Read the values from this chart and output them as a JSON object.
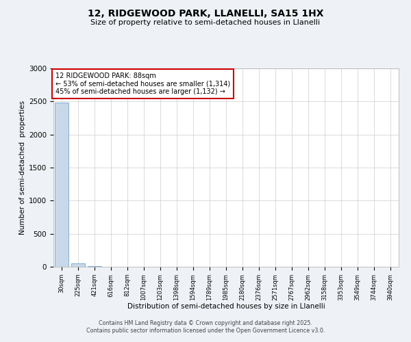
{
  "title1": "12, RIDGEWOOD PARK, LLANELLI, SA15 1HX",
  "title2": "Size of property relative to semi-detached houses in Llanelli",
  "xlabel": "Distribution of semi-detached houses by size in Llanelli",
  "ylabel": "Number of semi-detached  properties",
  "bar_labels": [
    "30sqm",
    "225sqm",
    "421sqm",
    "616sqm",
    "812sqm",
    "1007sqm",
    "1203sqm",
    "1398sqm",
    "1594sqm",
    "1789sqm",
    "1985sqm",
    "2180sqm",
    "2376sqm",
    "2571sqm",
    "2767sqm",
    "2962sqm",
    "3158sqm",
    "3353sqm",
    "3549sqm",
    "3744sqm",
    "3940sqm"
  ],
  "bar_heights": [
    2480,
    50,
    10,
    5,
    3,
    2,
    1,
    1,
    1,
    1,
    1,
    0,
    0,
    0,
    0,
    0,
    0,
    0,
    0,
    0,
    0
  ],
  "bar_color": "#c8d8e8",
  "bar_edge_color": "#5599cc",
  "annotation_text": "12 RIDGEWOOD PARK: 88sqm\n← 53% of semi-detached houses are smaller (1,314)\n45% of semi-detached houses are larger (1,132) →",
  "annotation_box_color": "#ffffff",
  "annotation_border_color": "#cc0000",
  "ylim": [
    0,
    3000
  ],
  "yticks": [
    0,
    500,
    1000,
    1500,
    2000,
    2500,
    3000
  ],
  "footer1": "Contains HM Land Registry data © Crown copyright and database right 2025.",
  "footer2": "Contains public sector information licensed under the Open Government Licence v3.0.",
  "bg_color": "#eef2f6",
  "plot_bg_color": "#ffffff",
  "grid_color": "#cccccc"
}
